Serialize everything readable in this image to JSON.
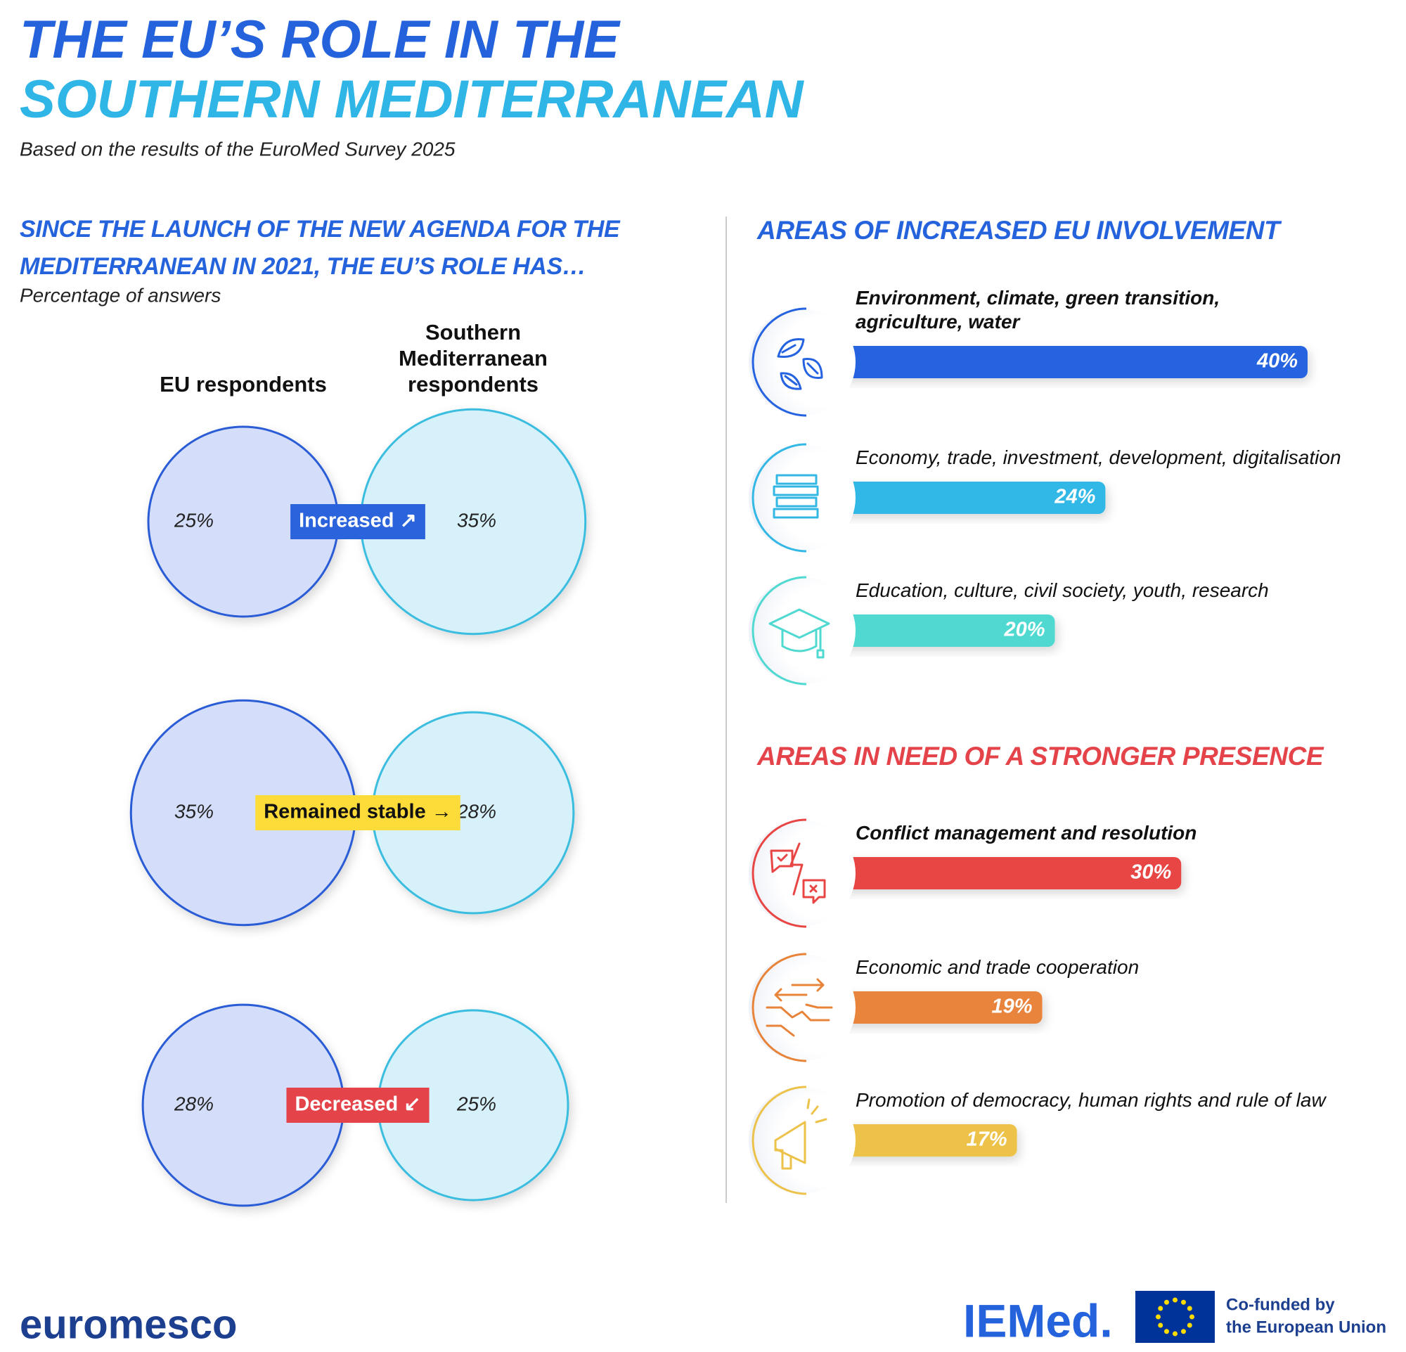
{
  "header": {
    "title": [
      "THE EU’S ROLE IN THE",
      "SOUTHERN MEDITERRANEAN"
    ],
    "subtitle": "Based on the results of the EuroMed Survey 2025"
  },
  "chart_data": [
    {
      "type": "bubble",
      "title": [
        "SINCE THE LAUNCH OF THE NEW AGENDA FOR THE",
        "MEDITERRANEAN IN 2021, THE EU’S ROLE HAS…"
      ],
      "subtitle": "Percentage of answers",
      "categories": [
        "Increased ↗",
        "Remained stable →",
        "Decreased ↙"
      ],
      "category_colors": [
        "#2b63dc",
        "#fddc3a",
        "#e4434a"
      ],
      "series": [
        {
          "name": "EU respondents",
          "color": "#d4defa",
          "values": [
            25,
            35,
            28
          ],
          "value_labels": [
            "25%",
            "35%",
            "28%"
          ]
        },
        {
          "name": "Southern Mediterranean respondents",
          "color": "#d7f1fa",
          "values": [
            35,
            28,
            25
          ],
          "value_labels": [
            "35%",
            "28%",
            "25%"
          ]
        }
      ]
    },
    {
      "type": "hbar",
      "title": "AREAS OF INCREASED EU INVOLVEMENT",
      "categories": [
        "Environment, climate, green transition, agriculture, water",
        "Economy, trade, investment, development, digitalisation",
        "Education, culture, civil society, youth, research"
      ],
      "values": [
        40,
        24,
        20
      ],
      "value_labels": [
        "40%",
        "24%",
        "20%"
      ],
      "colors": [
        "#2563e0",
        "#33b8e6",
        "#4fd9d0"
      ],
      "xlim": [
        0,
        40
      ]
    },
    {
      "type": "hbar",
      "title": "AREAS IN NEED OF A STRONGER PRESENCE",
      "categories": [
        "Conflict management and resolution",
        "Economic and trade cooperation",
        "Promotion of democracy, human rights and rule of law"
      ],
      "values": [
        30,
        19,
        17
      ],
      "value_labels": [
        "30%",
        "19%",
        "17%"
      ],
      "colors": [
        "#e84545",
        "#e8843a",
        "#ecc24a"
      ],
      "xlim": [
        0,
        40
      ]
    }
  ],
  "footer": {
    "left_logo": "euromesco",
    "center_logo": "IEMed.",
    "funding": [
      "Co-funded by",
      "the European Union"
    ]
  }
}
